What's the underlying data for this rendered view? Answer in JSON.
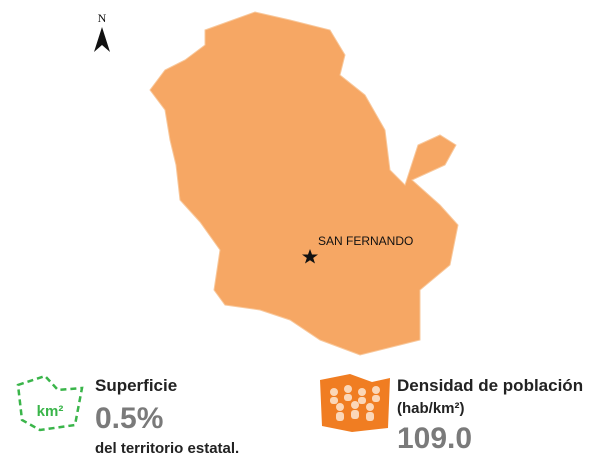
{
  "map": {
    "north": "N",
    "city": "SAN FERNANDO"
  },
  "surface": {
    "icon": "km²",
    "title": "Superficie",
    "value": "0.5%",
    "note": "del territorio estatal."
  },
  "density": {
    "title": "Densidad de población",
    "unit": "(hab/km²)",
    "value": "109.0"
  }
}
